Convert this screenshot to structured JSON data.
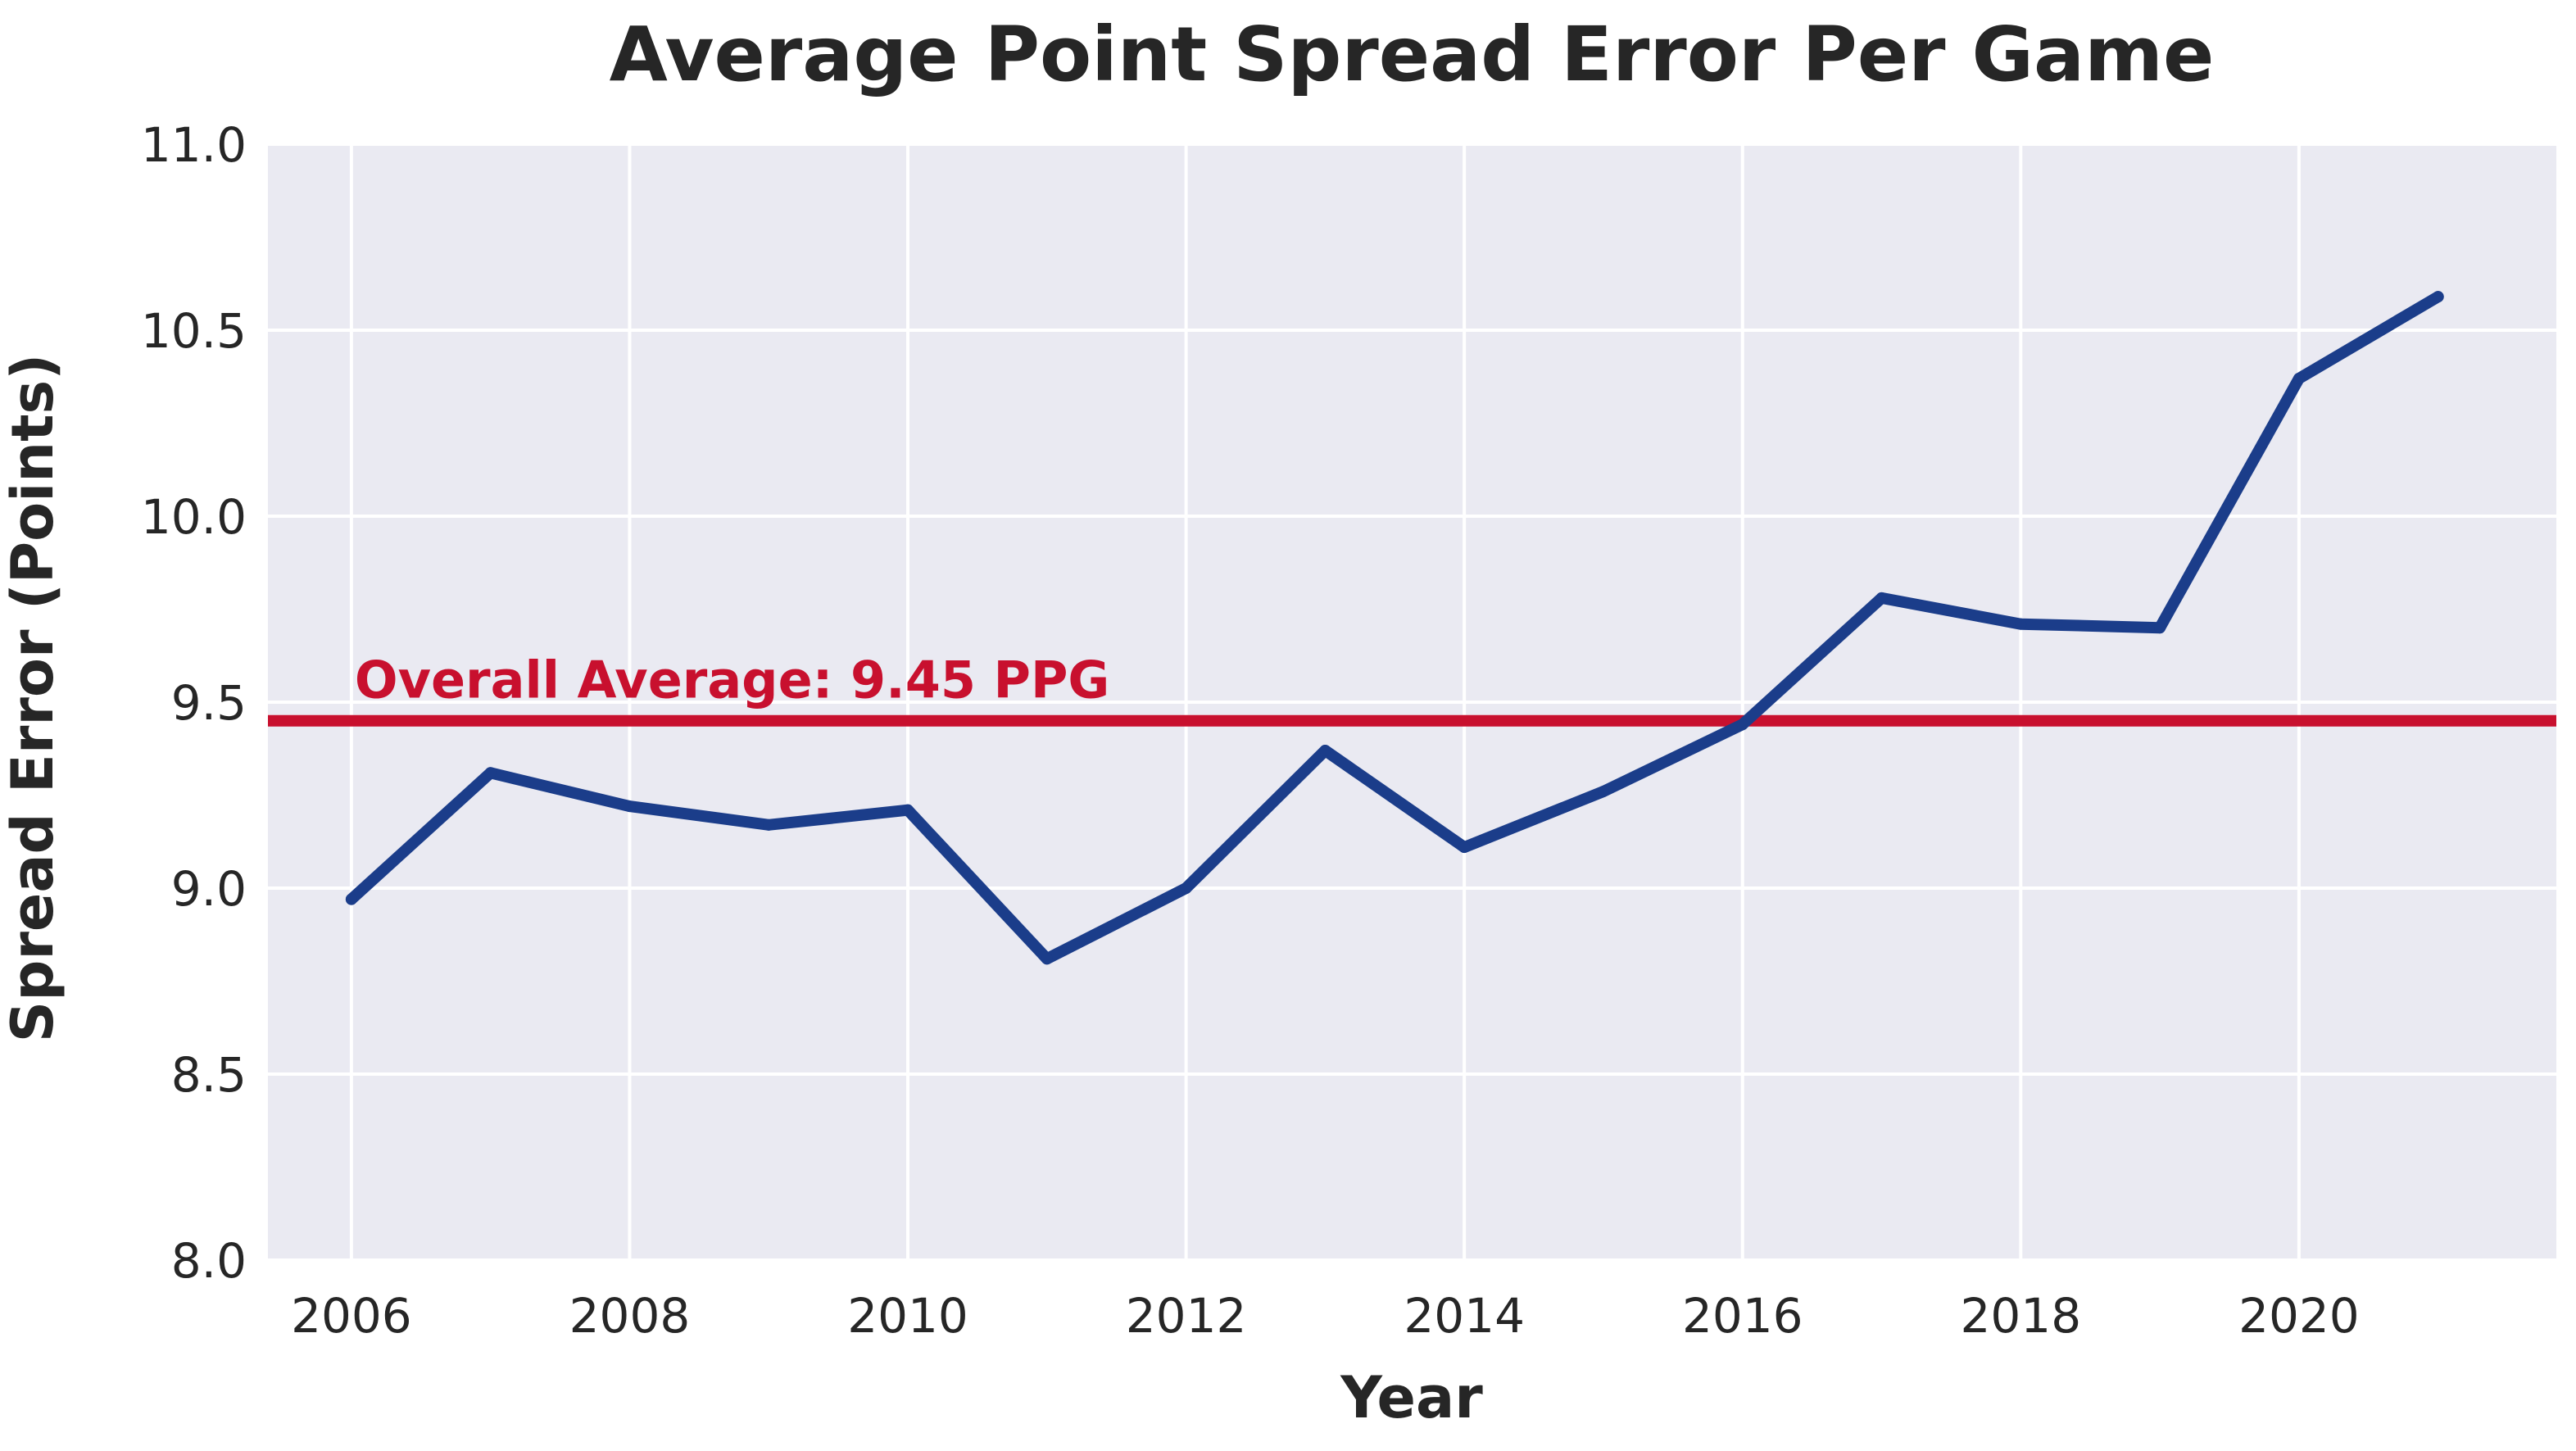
{
  "colors": {
    "plot_background": "#eaeaf2",
    "grid": "#ffffff",
    "series_line": "#1b3d8a",
    "average_line": "#c8102e",
    "text": "#262626"
  },
  "chart_data": {
    "type": "line",
    "title": "Average Point Spread Error Per Game",
    "xlabel": "Year",
    "ylabel": "Spread Error (Points)",
    "xlim": [
      2005.4,
      2021.85
    ],
    "ylim": [
      8.0,
      11.0
    ],
    "x_ticks": [
      2006,
      2008,
      2010,
      2012,
      2014,
      2016,
      2018,
      2020
    ],
    "y_ticks": [
      "8.0",
      "8.5",
      "9.0",
      "9.5",
      "10.0",
      "10.5",
      "11.0"
    ],
    "grid": true,
    "legend": "none",
    "x": [
      2006,
      2007,
      2008,
      2009,
      2010,
      2011,
      2012,
      2013,
      2014,
      2015,
      2016,
      2017,
      2018,
      2019,
      2020,
      2021
    ],
    "series": [
      {
        "values": [
          8.97,
          9.31,
          9.22,
          9.17,
          9.21,
          8.81,
          9.0,
          9.37,
          9.11,
          9.26,
          9.44,
          9.78,
          9.71,
          9.7,
          10.37,
          10.59
        ]
      }
    ],
    "reference_line": {
      "value": 9.45,
      "label": "Overall Average: 9.45 PPG"
    }
  }
}
